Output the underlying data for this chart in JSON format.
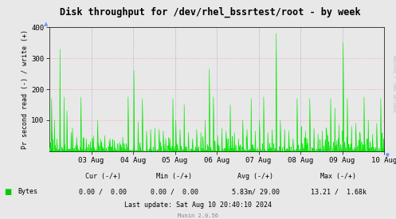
{
  "title": "Disk throughput for /dev/rhel_bssrtest/root - by week",
  "ylabel": "Pr second read (-) / write (+)",
  "bg_color": "#E8E8E8",
  "plot_bg_color": "#E8E8E8",
  "line_color": "#00EE00",
  "fill_color": "#00CC00",
  "ylim": [
    0,
    400
  ],
  "yticks": [
    0,
    100,
    200,
    300,
    400
  ],
  "x_labels": [
    "03 Aug",
    "04 Aug",
    "05 Aug",
    "06 Aug",
    "07 Aug",
    "08 Aug",
    "09 Aug",
    "10 Aug"
  ],
  "legend_label": "Bytes",
  "cur_text": "Cur (-/+)",
  "min_text": "Min (-/+)",
  "avg_text": "Avg (-/+)",
  "max_text": "Max (-/+)",
  "cur_val": "0.00 /  0.00",
  "min_val": "0.00 /  0.00",
  "avg_val": "5.83m/ 29.00",
  "max_val": "13.21 /  1.68k",
  "last_update": "Last update: Sat Aug 10 20:40:10 2024",
  "munin_version": "Munin 2.0.56",
  "rrdtool_text": "RRDTOOL / TOBI OETIKER",
  "h_grid_color": "#FF9999",
  "v_grid_color": "#9999CC",
  "title_color": "#000000",
  "text_color": "#000000",
  "muted_color": "#888888"
}
